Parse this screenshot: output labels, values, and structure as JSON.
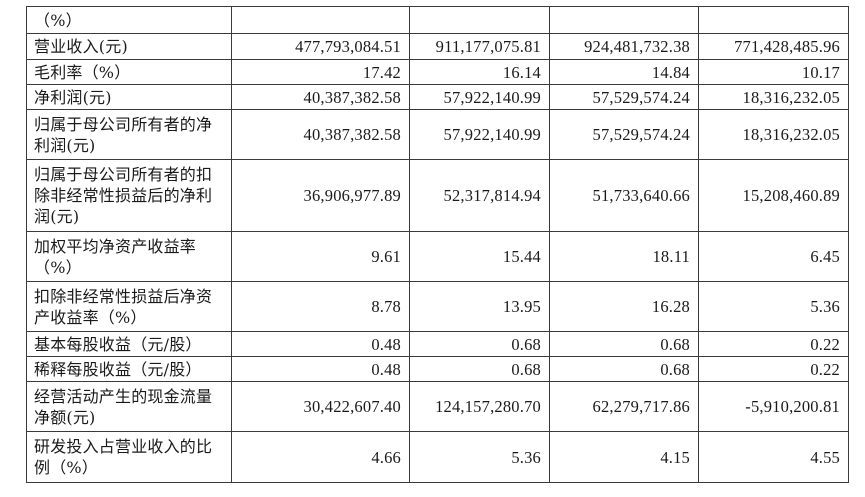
{
  "table": {
    "rows": [
      {
        "label": "（%）",
        "values": [
          "",
          "",
          "",
          ""
        ]
      },
      {
        "label": "营业收入(元)",
        "values": [
          "477,793,084.51",
          "911,177,075.81",
          "924,481,732.38",
          "771,428,485.96"
        ]
      },
      {
        "label": "毛利率（%）",
        "values": [
          "17.42",
          "16.14",
          "14.84",
          "10.17"
        ]
      },
      {
        "label": "净利润(元)",
        "values": [
          "40,387,382.58",
          "57,922,140.99",
          "57,529,574.24",
          "18,316,232.05"
        ]
      },
      {
        "label": "归属于母公司所有者的净利润(元)",
        "values": [
          "40,387,382.58",
          "57,922,140.99",
          "57,529,574.24",
          "18,316,232.05"
        ]
      },
      {
        "label": "归属于母公司所有者的扣除非经常性损益后的净利润(元)",
        "values": [
          "36,906,977.89",
          "52,317,814.94",
          "51,733,640.66",
          "15,208,460.89"
        ]
      },
      {
        "label": "加权平均净资产收益率（%）",
        "values": [
          "9.61",
          "15.44",
          "18.11",
          "6.45"
        ]
      },
      {
        "label": "扣除非经常性损益后净资产收益率（%）",
        "values": [
          "8.78",
          "13.95",
          "16.28",
          "5.36"
        ]
      },
      {
        "label": "基本每股收益（元/股）",
        "values": [
          "0.48",
          "0.68",
          "0.68",
          "0.22"
        ]
      },
      {
        "label": "稀释每股收益（元/股）",
        "values": [
          "0.48",
          "0.68",
          "0.68",
          "0.22"
        ]
      },
      {
        "label": "经营活动产生的现金流量净额(元)",
        "values": [
          "30,422,607.40",
          "124,157,280.70",
          "62,279,717.86",
          "-5,910,200.81"
        ]
      },
      {
        "label": "研发投入占营业收入的比例（%）",
        "values": [
          "4.66",
          "5.36",
          "4.15",
          "4.55"
        ]
      }
    ]
  }
}
